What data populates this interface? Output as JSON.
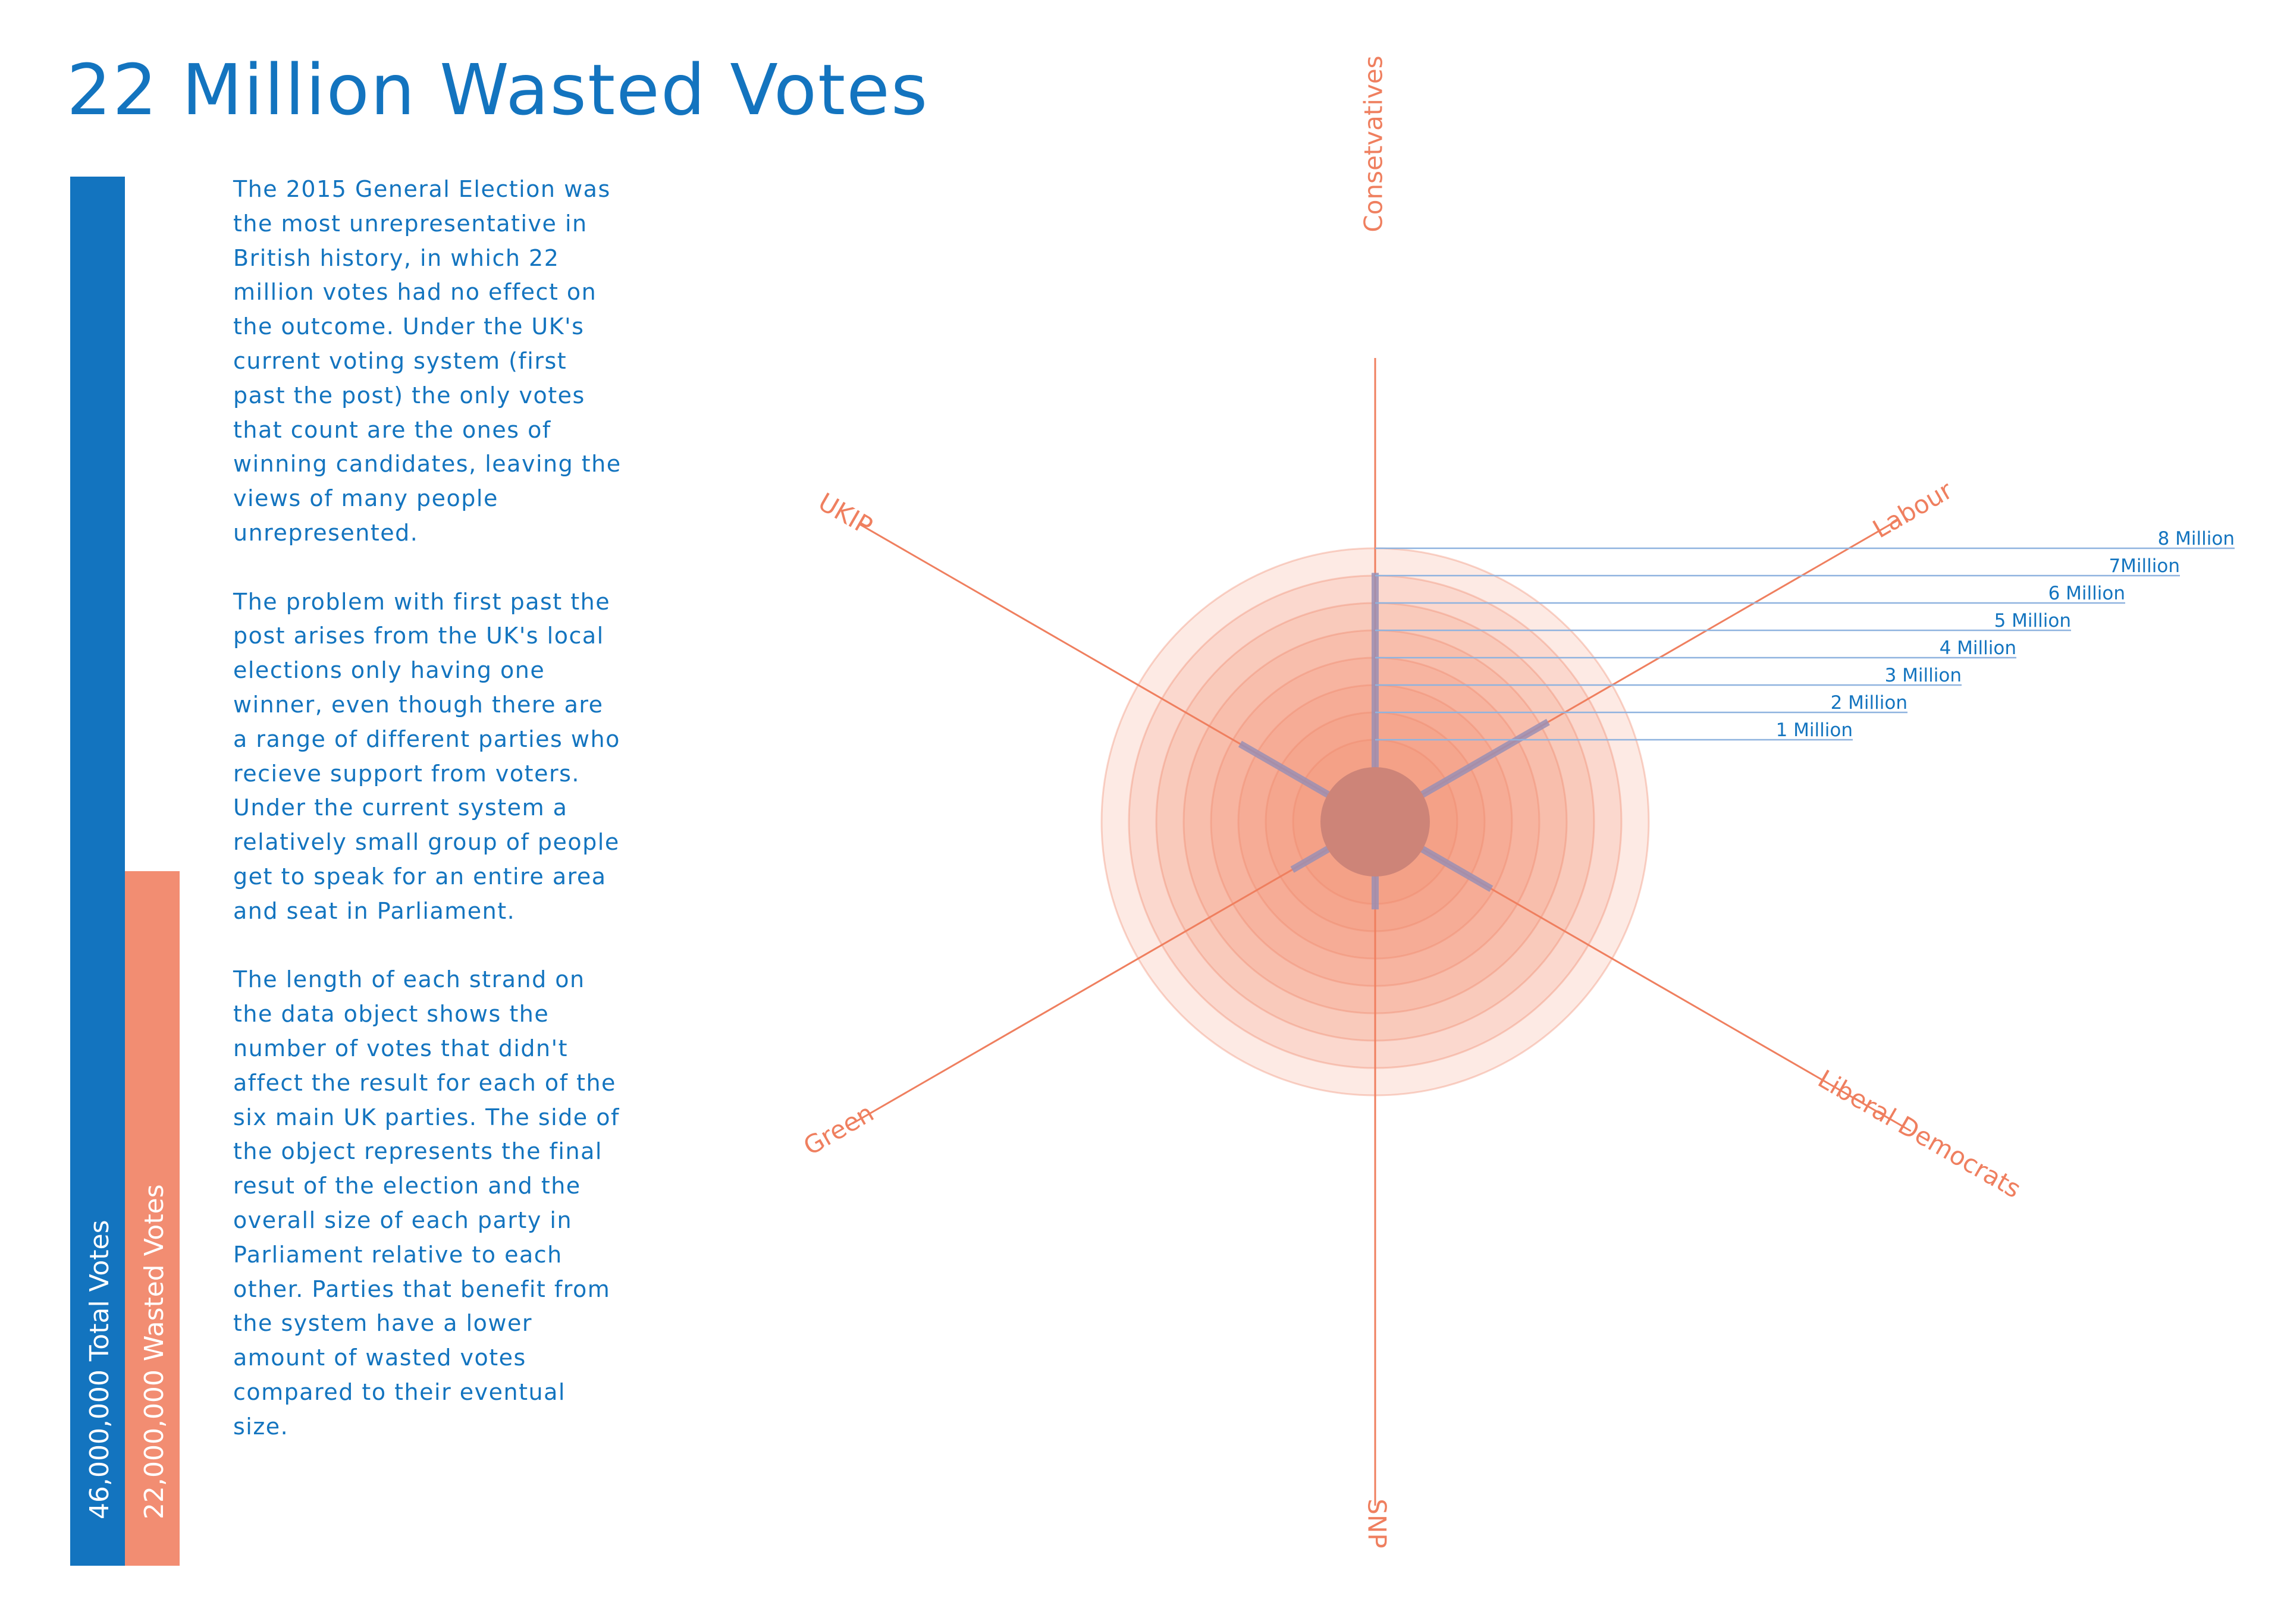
{
  "title": "22 Million Wasted Votes",
  "bars": {
    "total_label": "46,000,000 Total Votes",
    "total_value": 46000000,
    "wasted_label": "22,000,000 Wasted Votes",
    "wasted_value": 22000000
  },
  "description": [
    "The 2015 General Election was the most unrepresentative in British history, in which 22 million votes had no effect on the outcome. Under the UK's current voting system (first past the post) the only votes that count are the ones of winning candidates, leaving the views of many people unrepresented.",
    "The problem with first past the post arises from the UK's local elections only having one winner, even though there are a range of different parties who recieve support from voters. Under the current system a relatively small group of people get to speak for an entire area and seat in Parliament.",
    "The length of each strand on the data object shows the number of votes that didn't affect the result for each of the six main UK parties. The side of the object represents the final resut of the election and the overall size of each party in Parliament relative to each other. Parties that benefit from the system have a lower amount of wasted votes compared to their eventual size."
  ],
  "colors": {
    "blue": "#1374bf",
    "salmon": "#f28d72",
    "axis": "#ef7f5f",
    "strand": "#9a8fb4",
    "core": "#cd8478",
    "scale_line": "#8fb3df"
  },
  "chart_data": {
    "type": "radial",
    "rings": [
      {
        "label": "1 Million",
        "value": 1
      },
      {
        "label": "2 Million",
        "value": 2
      },
      {
        "label": "3 Million",
        "value": 3
      },
      {
        "label": "4 Million",
        "value": 4
      },
      {
        "label": "5 Million",
        "value": 5
      },
      {
        "label": "6 Million",
        "value": 6
      },
      {
        "label": "7Million",
        "value": 7
      },
      {
        "label": "8 Million",
        "value": 8
      }
    ],
    "unit": "Million",
    "series": [
      {
        "name": "Consetvatives",
        "wasted_votes_millions": 7.1
      },
      {
        "name": "Labour",
        "wasted_votes_millions": 5.3
      },
      {
        "name": "Liberal Democrats",
        "wasted_votes_millions": 2.9
      },
      {
        "name": "SNP",
        "wasted_votes_millions": 1.2
      },
      {
        "name": "Green",
        "wasted_votes_millions": 1.5
      },
      {
        "name": "UKIP",
        "wasted_votes_millions": 3.7
      }
    ]
  }
}
